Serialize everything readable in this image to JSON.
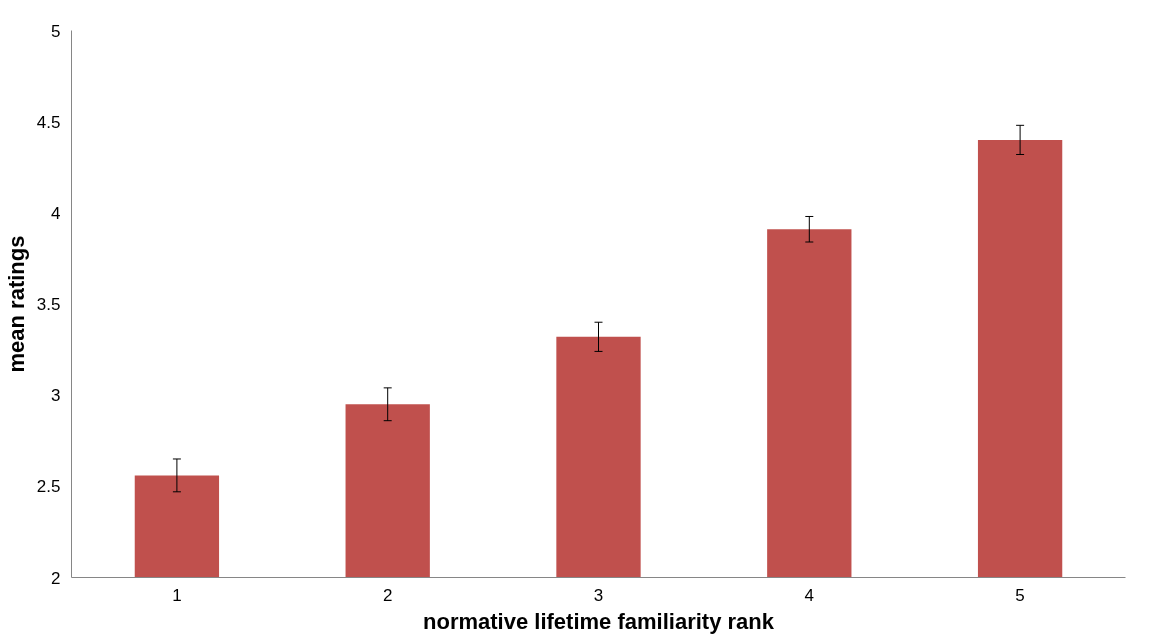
{
  "chart_data": {
    "type": "bar",
    "xlabel": "normative lifetime familiarity rank",
    "ylabel": "mean ratings",
    "categories": [
      "1",
      "2",
      "3",
      "4",
      "5"
    ],
    "values": [
      2.56,
      2.95,
      3.32,
      3.91,
      4.4
    ],
    "errors": [
      0.09,
      0.09,
      0.08,
      0.07,
      0.08
    ],
    "color": "#c0504d",
    "ylim": [
      2,
      5
    ],
    "yticks": [
      2,
      2.5,
      3,
      3.5,
      4,
      4.5,
      5
    ],
    "grid": false
  }
}
